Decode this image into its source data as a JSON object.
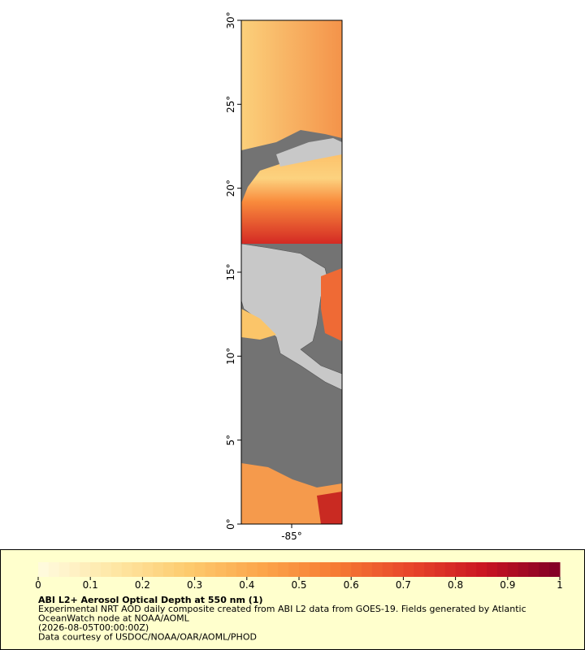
{
  "map": {
    "latlim": [
      0,
      30
    ],
    "lonlim": [
      -88,
      -82
    ],
    "lat_ticks": [
      {
        "value": 0,
        "label": "0°"
      },
      {
        "value": 5,
        "label": "5°"
      },
      {
        "value": 10,
        "label": "10°"
      },
      {
        "value": 15,
        "label": "15°"
      },
      {
        "value": 20,
        "label": "20°"
      },
      {
        "value": 25,
        "label": "25°"
      },
      {
        "value": 30,
        "label": "30°"
      }
    ],
    "lon_ticks": [
      {
        "value": -85,
        "label": "-85°"
      }
    ]
  },
  "colorbar": {
    "lim": [
      0,
      1
    ],
    "ticks": [
      0,
      0.1,
      0.2,
      0.3,
      0.4,
      0.5,
      0.6,
      0.7,
      0.8,
      0.9,
      1
    ],
    "colormap": [
      "#fffbe0",
      "#fee7a6",
      "#fdcb6e",
      "#fca54a",
      "#f67b34",
      "#e8452a",
      "#c91422",
      "#800026"
    ]
  },
  "caption": {
    "title": "ABI L2+ Aerosol Optical Depth at 550 nm (1)",
    "lines": [
      "Experimental NRT AOD daily composite created from ABI L2 data from GOES-19. Fields generated by Atlantic",
      "OceanWatch node at NOAA/AOML",
      "(2026-08-05T00:00:00Z)",
      "Data courtesy of USDOC/NOAA/OAR/AOML/PHOD"
    ]
  }
}
